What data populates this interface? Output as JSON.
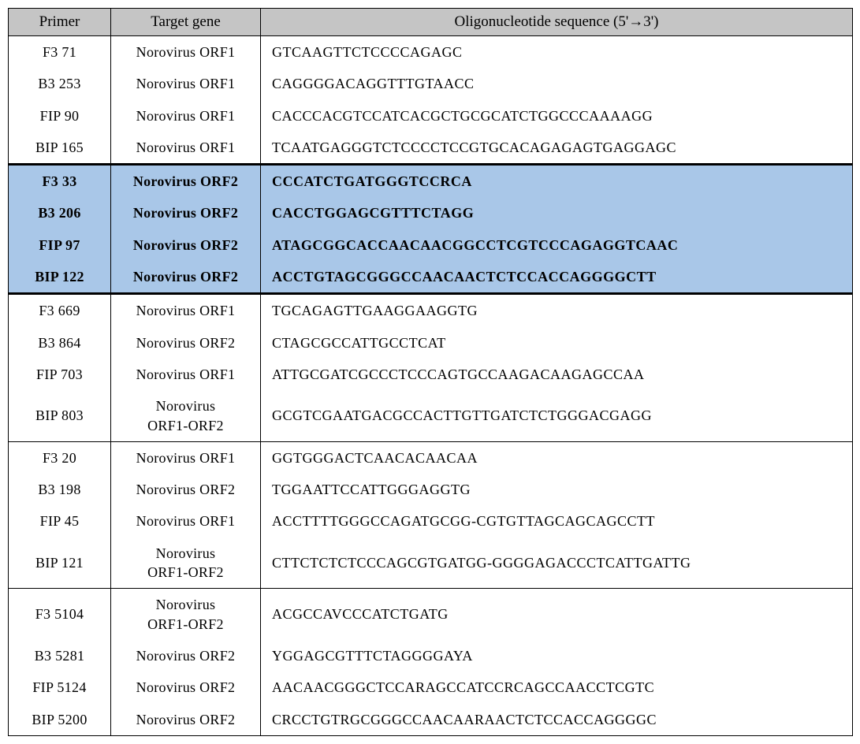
{
  "table": {
    "header_bg": "#c5c5c5",
    "highlight_bg": "#a9c7e8",
    "columns": [
      "Primer",
      "Target gene",
      "Oligonucleotide sequence (5'→3')"
    ],
    "groups": [
      {
        "highlight": false,
        "rows": [
          {
            "primer": "F3 71",
            "target": "Norovirus ORF1",
            "seq": "GTCAAGTTCTCCCCAGAGC"
          },
          {
            "primer": "B3 253",
            "target": "Norovirus ORF1",
            "seq": "CAGGGGACAGGTTTGTAACC"
          },
          {
            "primer": "FIP 90",
            "target": "Norovirus ORF1",
            "seq": "CACCCACGTCCATCACGCTGCGCATCTGGCCCAAAAGG"
          },
          {
            "primer": "BIP 165",
            "target": "Norovirus ORF1",
            "seq": "TCAATGAGGGTCTCCCCTCCGTGCACAGAGAGTGAGGAGC"
          }
        ]
      },
      {
        "highlight": true,
        "rows": [
          {
            "primer": "F3 33",
            "target": "Norovirus ORF2",
            "seq": "CCCATCTGATGGGTCCRCA"
          },
          {
            "primer": "B3 206",
            "target": "Norovirus ORF2",
            "seq": "CACCTGGAGCGTTTCTAGG"
          },
          {
            "primer": "FIP 97",
            "target": "Norovirus ORF2",
            "seq": "ATAGCGGCACCAACAACGGCCTCGTCCCAGAGGTCAAC"
          },
          {
            "primer": "BIP 122",
            "target": "Norovirus ORF2",
            "seq": "ACCTGTAGCGGGCCAACAACTCTCCACCAGGGGCTT"
          }
        ]
      },
      {
        "highlight": false,
        "rows": [
          {
            "primer": "F3 669",
            "target": "Norovirus ORF1",
            "seq": "TGCAGAGTTGAAGGAAGGTG"
          },
          {
            "primer": "B3 864",
            "target": "Norovirus ORF2",
            "seq": "CTAGCGCCATTGCCTCAT"
          },
          {
            "primer": "FIP 703",
            "target": "Norovirus ORF1",
            "seq": "ATTGCGATCGCCCTCCCAGTGCCAAGACAAGAGCCAA"
          },
          {
            "primer": "BIP 803",
            "target": "Norovirus\nORF1-ORF2",
            "seq": "GCGTCGAATGACGCCACTTGTTGATCTCTGGGACGAGG"
          }
        ]
      },
      {
        "highlight": false,
        "rows": [
          {
            "primer": "F3 20",
            "target": "Norovirus ORF1",
            "seq": "GGTGGGACTCAACACAACAA"
          },
          {
            "primer": "B3 198",
            "target": "Norovirus ORF2",
            "seq": "TGGAATTCCATTGGGAGGTG"
          },
          {
            "primer": "FIP 45",
            "target": "Norovirus ORF1",
            "seq": "ACCTTTTGGGCCAGATGCGG-CGTGTTAGCAGCAGCCTT"
          },
          {
            "primer": "BIP 121",
            "target": "Norovirus\nORF1-ORF2",
            "seq": "CTTCTCTCTCCCAGCGTGATGG-GGGGAGACCCTCATTGATTG"
          }
        ]
      },
      {
        "highlight": false,
        "rows": [
          {
            "primer": "F3 5104",
            "target": "Norovirus\nORF1-ORF2",
            "seq": "ACGCCAVCCCATCTGATG"
          },
          {
            "primer": "B3 5281",
            "target": "Norovirus ORF2",
            "seq": "YGGAGCGTTTCTAGGGGAYA"
          },
          {
            "primer": "FIP 5124",
            "target": "Norovirus ORF2",
            "seq": "AACAACGGGCTCCARAGCCATCCRCAGCCAACCTCGTC"
          },
          {
            "primer": "BIP 5200",
            "target": "Norovirus ORF2",
            "seq": "CRCCTGTRGCGGGCCAACAARAACTCTCCACCAGGGGC"
          }
        ]
      }
    ]
  }
}
